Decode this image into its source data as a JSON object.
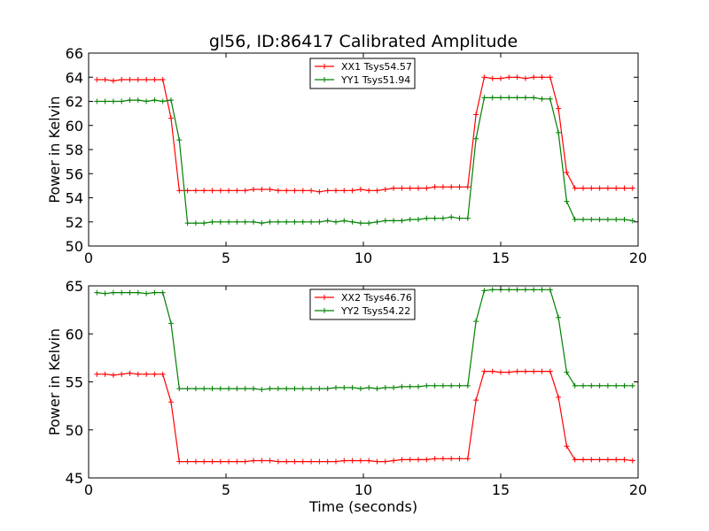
{
  "title": "gl56, ID:86417 Calibrated Amplitude",
  "chart_data": [
    {
      "type": "line",
      "ylabel": "Power in Kelvin",
      "xlabel": "",
      "xlim": [
        0,
        20
      ],
      "ylim": [
        50,
        66
      ],
      "xticks": [
        0,
        5,
        10,
        15,
        20
      ],
      "yticks": [
        50,
        52,
        54,
        56,
        58,
        60,
        62,
        64,
        66
      ],
      "legend_position": "top-center",
      "x": [
        0.3,
        0.6,
        0.9,
        1.2,
        1.5,
        1.8,
        2.1,
        2.4,
        2.7,
        3.0,
        3.3,
        3.6,
        3.9,
        4.2,
        4.5,
        4.8,
        5.1,
        5.4,
        5.7,
        6.0,
        6.3,
        6.6,
        6.9,
        7.2,
        7.5,
        7.8,
        8.1,
        8.4,
        8.7,
        9.0,
        9.3,
        9.6,
        9.9,
        10.2,
        10.5,
        10.8,
        11.1,
        11.4,
        11.7,
        12.0,
        12.3,
        12.6,
        12.9,
        13.2,
        13.5,
        13.8,
        14.1,
        14.4,
        14.7,
        15.0,
        15.3,
        15.6,
        15.9,
        16.2,
        16.5,
        16.8,
        17.1,
        17.4,
        17.7,
        18.0,
        18.3,
        18.6,
        18.9,
        19.2,
        19.5,
        19.8
      ],
      "series": [
        {
          "name": "XX1 Tsys54.57",
          "color": "#ff0000",
          "values": [
            63.8,
            63.8,
            63.7,
            63.8,
            63.8,
            63.8,
            63.8,
            63.8,
            63.8,
            60.6,
            54.6,
            54.6,
            54.6,
            54.6,
            54.6,
            54.6,
            54.6,
            54.6,
            54.6,
            54.7,
            54.7,
            54.7,
            54.6,
            54.6,
            54.6,
            54.6,
            54.6,
            54.5,
            54.6,
            54.6,
            54.6,
            54.6,
            54.7,
            54.6,
            54.6,
            54.7,
            54.8,
            54.8,
            54.8,
            54.8,
            54.8,
            54.9,
            54.9,
            54.9,
            54.9,
            54.9,
            60.9,
            64.0,
            63.9,
            63.9,
            64.0,
            64.0,
            63.9,
            64.0,
            64.0,
            64.0,
            61.4,
            56.1,
            54.8,
            54.8,
            54.8,
            54.8,
            54.8,
            54.8,
            54.8,
            54.8
          ]
        },
        {
          "name": "YY1 Tsys51.94",
          "color": "#008000",
          "values": [
            62.0,
            62.0,
            62.0,
            62.0,
            62.1,
            62.1,
            62.0,
            62.1,
            62.0,
            62.1,
            58.8,
            51.9,
            51.9,
            51.9,
            52.0,
            52.0,
            52.0,
            52.0,
            52.0,
            52.0,
            51.9,
            52.0,
            52.0,
            52.0,
            52.0,
            52.0,
            52.0,
            52.0,
            52.1,
            52.0,
            52.1,
            52.0,
            51.9,
            51.9,
            52.0,
            52.1,
            52.1,
            52.1,
            52.2,
            52.2,
            52.3,
            52.3,
            52.3,
            52.4,
            52.3,
            52.3,
            58.9,
            62.3,
            62.3,
            62.3,
            62.3,
            62.3,
            62.3,
            62.3,
            62.2,
            62.2,
            59.4,
            53.7,
            52.2,
            52.2,
            52.2,
            52.2,
            52.2,
            52.2,
            52.2,
            52.1
          ]
        }
      ]
    },
    {
      "type": "line",
      "ylabel": "Power in Kelvin",
      "xlabel": "Time (seconds)",
      "xlim": [
        0,
        20
      ],
      "ylim": [
        45,
        65
      ],
      "xticks": [
        0,
        5,
        10,
        15,
        20
      ],
      "yticks": [
        45,
        50,
        55,
        60,
        65
      ],
      "legend_position": "top-center",
      "x": [
        0.3,
        0.6,
        0.9,
        1.2,
        1.5,
        1.8,
        2.1,
        2.4,
        2.7,
        3.0,
        3.3,
        3.6,
        3.9,
        4.2,
        4.5,
        4.8,
        5.1,
        5.4,
        5.7,
        6.0,
        6.3,
        6.6,
        6.9,
        7.2,
        7.5,
        7.8,
        8.1,
        8.4,
        8.7,
        9.0,
        9.3,
        9.6,
        9.9,
        10.2,
        10.5,
        10.8,
        11.1,
        11.4,
        11.7,
        12.0,
        12.3,
        12.6,
        12.9,
        13.2,
        13.5,
        13.8,
        14.1,
        14.4,
        14.7,
        15.0,
        15.3,
        15.6,
        15.9,
        16.2,
        16.5,
        16.8,
        17.1,
        17.4,
        17.7,
        18.0,
        18.3,
        18.6,
        18.9,
        19.2,
        19.5,
        19.8
      ],
      "series": [
        {
          "name": "XX2 Tsys46.76",
          "color": "#ff0000",
          "values": [
            55.8,
            55.8,
            55.7,
            55.8,
            55.9,
            55.8,
            55.8,
            55.8,
            55.8,
            52.9,
            46.7,
            46.7,
            46.7,
            46.7,
            46.7,
            46.7,
            46.7,
            46.7,
            46.7,
            46.8,
            46.8,
            46.8,
            46.7,
            46.7,
            46.7,
            46.7,
            46.7,
            46.7,
            46.7,
            46.7,
            46.8,
            46.8,
            46.8,
            46.8,
            46.7,
            46.7,
            46.8,
            46.9,
            46.9,
            46.9,
            46.9,
            47.0,
            47.0,
            47.0,
            47.0,
            47.0,
            53.1,
            56.1,
            56.1,
            56.0,
            56.0,
            56.1,
            56.1,
            56.1,
            56.1,
            56.1,
            53.4,
            48.3,
            46.9,
            46.9,
            46.9,
            46.9,
            46.9,
            46.9,
            46.9,
            46.8
          ]
        },
        {
          "name": "YY2 Tsys54.22",
          "color": "#008000",
          "values": [
            64.3,
            64.2,
            64.3,
            64.3,
            64.3,
            64.3,
            64.2,
            64.3,
            64.3,
            61.1,
            54.3,
            54.3,
            54.3,
            54.3,
            54.3,
            54.3,
            54.3,
            54.3,
            54.3,
            54.3,
            54.2,
            54.3,
            54.3,
            54.3,
            54.3,
            54.3,
            54.3,
            54.3,
            54.3,
            54.4,
            54.4,
            54.4,
            54.3,
            54.4,
            54.3,
            54.4,
            54.4,
            54.5,
            54.5,
            54.5,
            54.6,
            54.6,
            54.6,
            54.6,
            54.6,
            54.6,
            61.3,
            64.5,
            64.6,
            64.6,
            64.6,
            64.6,
            64.6,
            64.6,
            64.6,
            64.6,
            61.7,
            56.0,
            54.6,
            54.6,
            54.6,
            54.6,
            54.6,
            54.6,
            54.6,
            54.6
          ]
        }
      ]
    }
  ]
}
